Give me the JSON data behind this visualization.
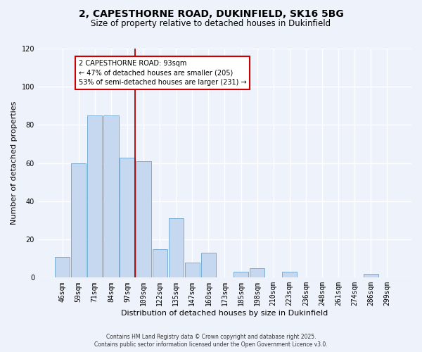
{
  "title": "2, CAPESTHORNE ROAD, DUKINFIELD, SK16 5BG",
  "subtitle": "Size of property relative to detached houses in Dukinfield",
  "xlabel": "Distribution of detached houses by size in Dukinfield",
  "ylabel": "Number of detached properties",
  "footer_line1": "Contains HM Land Registry data © Crown copyright and database right 2025.",
  "footer_line2": "Contains public sector information licensed under the Open Government Licence v3.0.",
  "bar_labels": [
    "46sqm",
    "59sqm",
    "71sqm",
    "84sqm",
    "97sqm",
    "109sqm",
    "122sqm",
    "135sqm",
    "147sqm",
    "160sqm",
    "173sqm",
    "185sqm",
    "198sqm",
    "210sqm",
    "223sqm",
    "236sqm",
    "248sqm",
    "261sqm",
    "274sqm",
    "286sqm",
    "299sqm"
  ],
  "bar_values": [
    11,
    60,
    85,
    85,
    63,
    61,
    15,
    31,
    8,
    13,
    0,
    3,
    5,
    0,
    3,
    0,
    0,
    0,
    0,
    2,
    0
  ],
  "bar_color": "#c5d8f0",
  "bar_edge_color": "#7aadd4",
  "vline_x": 4.48,
  "vline_color": "#aa0000",
  "annotation_text": "2 CAPESTHORNE ROAD: 93sqm\n← 47% of detached houses are smaller (205)\n53% of semi-detached houses are larger (231) →",
  "annotation_box_color": "white",
  "annotation_box_edge_color": "#cc0000",
  "ylim": [
    0,
    120
  ],
  "yticks": [
    0,
    20,
    40,
    60,
    80,
    100,
    120
  ],
  "bg_color": "#eef2fa",
  "plot_bg_color": "#eef2fa",
  "grid_color": "#ffffff",
  "title_fontsize": 10,
  "subtitle_fontsize": 8.5,
  "annotation_fontsize": 7,
  "axis_fontsize": 7,
  "label_fontsize": 8
}
